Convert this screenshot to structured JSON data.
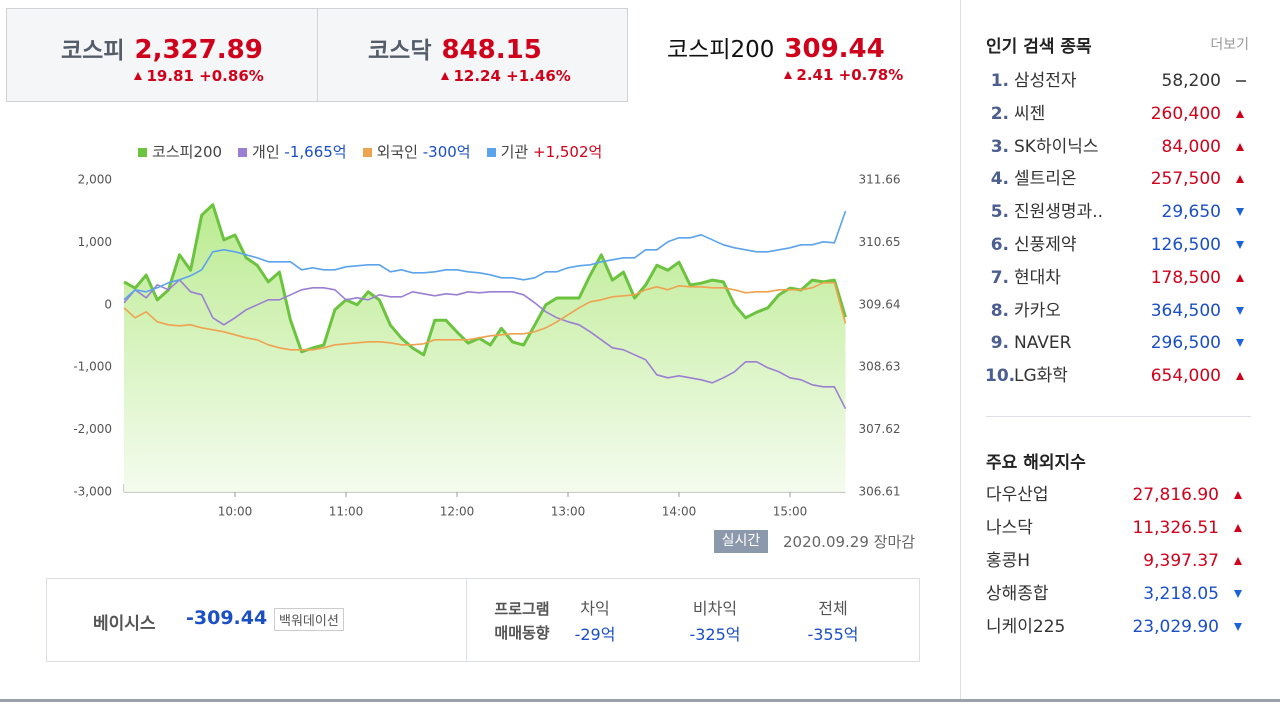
{
  "tabs": [
    {
      "name": "코스피",
      "value": "2,327.89",
      "change": "19.81",
      "rate": "+0.86%"
    },
    {
      "name": "코스닥",
      "value": "848.15",
      "change": "12.24",
      "rate": "+1.46%"
    },
    {
      "name": "코스피200",
      "value": "309.44",
      "change": "2.41",
      "rate": "+0.78%"
    }
  ],
  "chart_data": {
    "type": "line",
    "x": [
      9,
      9.1,
      9.2,
      9.3,
      9.4,
      9.5,
      9.6,
      9.7,
      9.8,
      9.9,
      10,
      10.1,
      10.2,
      10.3,
      10.4,
      10.5,
      10.6,
      10.7,
      10.8,
      10.9,
      11,
      11.1,
      11.2,
      11.3,
      11.4,
      11.5,
      11.6,
      11.7,
      11.8,
      11.9,
      12,
      12.1,
      12.2,
      12.3,
      12.4,
      12.5,
      12.6,
      12.7,
      12.8,
      12.9,
      13,
      13.1,
      13.2,
      13.3,
      13.4,
      13.5,
      13.6,
      13.7,
      13.8,
      13.9,
      14,
      14.1,
      14.2,
      14.3,
      14.4,
      14.5,
      14.6,
      14.7,
      14.8,
      14.9,
      15,
      15.1,
      15.2,
      15.3,
      15.4,
      15.5
    ],
    "xlim": [
      9,
      15.5
    ],
    "xticks": [
      {
        "value": 10,
        "label": "10:00"
      },
      {
        "value": 11,
        "label": "11:00"
      },
      {
        "value": 12,
        "label": "12:00"
      },
      {
        "value": 13,
        "label": "13:00"
      },
      {
        "value": 14,
        "label": "14:00"
      },
      {
        "value": 15,
        "label": "15:00"
      }
    ],
    "ylim": [
      -3000,
      2000
    ],
    "yticks": [
      {
        "value": 2000,
        "label": "2,000"
      },
      {
        "value": 1000,
        "label": "1,000"
      },
      0,
      {
        "value": -1000,
        "label": "-1,000"
      },
      {
        "value": -2000,
        "label": "-2,000"
      },
      {
        "value": -3000,
        "label": "-3,000"
      }
    ],
    "y2lim": [
      306.61,
      311.66
    ],
    "y2ticks": [
      311.66,
      310.65,
      309.64,
      308.63,
      307.62,
      306.61
    ],
    "grid": false,
    "series": [
      {
        "name": "코스피200",
        "color": "#6cc33f",
        "axis": "y2",
        "fill": true,
        "values": [
          310.01,
          309.91,
          310.12,
          309.72,
          309.88,
          310.45,
          310.2,
          311.09,
          311.26,
          310.69,
          310.77,
          310.4,
          310.28,
          310.01,
          310.17,
          309.39,
          308.88,
          308.94,
          308.99,
          309.56,
          309.72,
          309.64,
          309.85,
          309.72,
          309.31,
          309.1,
          308.94,
          308.83,
          309.39,
          309.39,
          309.2,
          309.02,
          309.1,
          308.99,
          309.26,
          309.04,
          308.99,
          309.31,
          309.64,
          309.75,
          309.75,
          309.75,
          310.12,
          310.45,
          310.04,
          310.17,
          309.75,
          309.96,
          310.28,
          310.2,
          310.33,
          309.96,
          309.99,
          310.04,
          310.01,
          309.64,
          309.43,
          309.52,
          309.59,
          309.8,
          309.91,
          309.88,
          310.04,
          310.01,
          310.04,
          309.44
        ]
      },
      {
        "name": "개인",
        "legend_value": "-1,665억",
        "legend_value_color": "#1b4fc5",
        "color": "#9b7fd3",
        "values": [
          32,
          240,
          112,
          321,
          240,
          401,
          208,
          160,
          -208,
          -321,
          -208,
          -80,
          0,
          80,
          80,
          160,
          240,
          273,
          273,
          240,
          80,
          112,
          80,
          160,
          128,
          128,
          208,
          176,
          144,
          176,
          160,
          208,
          192,
          208,
          208,
          208,
          160,
          32,
          -112,
          -208,
          -273,
          -321,
          -433,
          -561,
          -689,
          -721,
          -802,
          -882,
          -1122,
          -1170,
          -1138,
          -1170,
          -1202,
          -1250,
          -1170,
          -1074,
          -914,
          -914,
          -1010,
          -1074,
          -1170,
          -1202,
          -1282,
          -1314,
          -1314,
          -1665
        ]
      },
      {
        "name": "외국인",
        "legend_value": "-300억",
        "legend_value_color": "#1b4fc5",
        "color": "#efa24f",
        "values": [
          -48,
          -208,
          -112,
          -273,
          -321,
          -337,
          -321,
          -369,
          -401,
          -433,
          -481,
          -529,
          -561,
          -641,
          -689,
          -721,
          -721,
          -721,
          -689,
          -641,
          -625,
          -609,
          -593,
          -593,
          -609,
          -641,
          -641,
          -625,
          -561,
          -561,
          -561,
          -561,
          -529,
          -497,
          -481,
          -465,
          -465,
          -433,
          -369,
          -273,
          -160,
          -48,
          48,
          80,
          128,
          144,
          160,
          240,
          289,
          240,
          305,
          289,
          289,
          273,
          273,
          240,
          192,
          208,
          208,
          240,
          240,
          240,
          273,
          353,
          353,
          -300
        ]
      },
      {
        "name": "기관",
        "legend_value": "+1,502억",
        "legend_value_color": "#d0021b",
        "color": "#5ba3ea",
        "values": [
          80,
          240,
          208,
          272,
          353,
          401,
          465,
          561,
          850,
          882,
          850,
          802,
          753,
          689,
          689,
          689,
          561,
          593,
          561,
          561,
          609,
          625,
          641,
          641,
          529,
          561,
          513,
          513,
          529,
          561,
          561,
          529,
          513,
          481,
          433,
          433,
          401,
          433,
          529,
          529,
          593,
          625,
          641,
          689,
          721,
          753,
          753,
          882,
          882,
          1010,
          1074,
          1074,
          1122,
          1042,
          962,
          914,
          882,
          850,
          850,
          882,
          914,
          962,
          962,
          1010,
          994,
          1502
        ]
      }
    ]
  },
  "status": {
    "badge": "실시간",
    "date": "2020.09.29",
    "state": "장마감"
  },
  "basis": {
    "label": "베이시스",
    "value": "-309.44",
    "tag": "백워데이션"
  },
  "program": {
    "label": [
      "프로그램",
      "매매동향"
    ],
    "columns": [
      {
        "label": "차익",
        "value": "-29억"
      },
      {
        "label": "비차익",
        "value": "-325억"
      },
      {
        "label": "전체",
        "value": "-355억"
      }
    ]
  },
  "popular": {
    "title": "인기 검색 종목",
    "more": "더보기",
    "items": [
      {
        "rank": "1.",
        "name": "삼성전자",
        "price": "58,200",
        "direction": "flat"
      },
      {
        "rank": "2.",
        "name": "씨젠",
        "price": "260,400",
        "direction": "up"
      },
      {
        "rank": "3.",
        "name": "SK하이닉스",
        "price": "84,000",
        "direction": "up"
      },
      {
        "rank": "4.",
        "name": "셀트리온",
        "price": "257,500",
        "direction": "up"
      },
      {
        "rank": "5.",
        "name": "진원생명과..",
        "price": "29,650",
        "direction": "down"
      },
      {
        "rank": "6.",
        "name": "신풍제약",
        "price": "126,500",
        "direction": "down"
      },
      {
        "rank": "7.",
        "name": "현대차",
        "price": "178,500",
        "direction": "up"
      },
      {
        "rank": "8.",
        "name": "카카오",
        "price": "364,500",
        "direction": "down"
      },
      {
        "rank": "9.",
        "name": "NAVER",
        "price": "296,500",
        "direction": "down"
      },
      {
        "rank": "10.",
        "name": "LG화학",
        "price": "654,000",
        "direction": "up"
      }
    ]
  },
  "overseas": {
    "title": "주요 해외지수",
    "items": [
      {
        "name": "다우산업",
        "value": "27,816.90",
        "direction": "up"
      },
      {
        "name": "나스닥",
        "value": "11,326.51",
        "direction": "up"
      },
      {
        "name": "홍콩H",
        "value": "9,397.37",
        "direction": "up"
      },
      {
        "name": "상해종합",
        "value": "3,218.05",
        "direction": "down"
      },
      {
        "name": "니케이225",
        "value": "23,029.90",
        "direction": "down"
      }
    ]
  }
}
